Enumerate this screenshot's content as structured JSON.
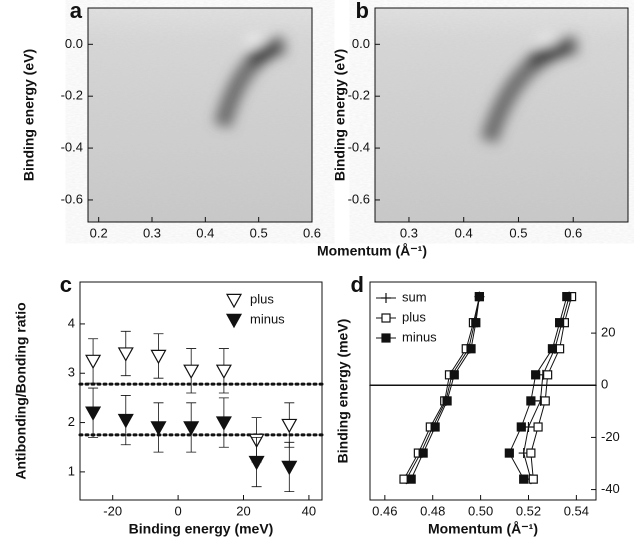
{
  "chart_data": [
    {
      "type": "heatmap",
      "title": "a",
      "xlabel": "Momentum (Å⁻¹)",
      "ylabel": "Binding energy (eV)",
      "xlim": [
        0.18,
        0.6
      ],
      "ylim": [
        -0.685,
        0.14
      ],
      "xticks": [
        0.2,
        0.3,
        0.4,
        0.5,
        0.6
      ],
      "yticks": [
        {
          "value": 0,
          "label": "0.0"
        },
        -0.2,
        -0.4,
        -0.6
      ]
    },
    {
      "type": "heatmap",
      "title": "b",
      "ylabel": "Binding energy (eV)",
      "xlim": [
        0.238,
        0.7
      ],
      "ylim": [
        -0.685,
        0.14
      ],
      "xticks": [
        0.3,
        0.4,
        0.5,
        0.6
      ],
      "yticks": [
        {
          "value": 0,
          "label": "0.0"
        },
        -0.2,
        -0.4,
        -0.6
      ]
    },
    {
      "type": "errorbar",
      "title": "c",
      "xlabel": "Binding energy (meV)",
      "ylabel": "Antibonding/Bonding ratio",
      "xlim": [
        -30,
        44
      ],
      "ylim": [
        0.43,
        4.85
      ],
      "xticks": [
        -20,
        0,
        20,
        40
      ],
      "yticks": [
        1,
        2,
        3,
        4
      ],
      "x": [
        -26,
        -16,
        -6,
        4,
        14,
        24,
        34
      ],
      "series": [
        {
          "name": "plus",
          "marker": "open-triangle",
          "color": "#111",
          "values": [
            3.25,
            3.4,
            3.35,
            3.05,
            3.05,
            1.65,
            1.95
          ],
          "errors": [
            0.45,
            0.45,
            0.45,
            0.45,
            0.45,
            0.45,
            0.45
          ]
        },
        {
          "name": "minus",
          "marker": "filled-triangle",
          "color": "#111",
          "values": [
            2.2,
            2.05,
            1.9,
            1.9,
            2.0,
            1.2,
            1.1
          ],
          "errors": [
            0.5,
            0.5,
            0.5,
            0.5,
            0.5,
            0.5,
            0.5
          ]
        }
      ],
      "hlines": [
        2.78,
        1.75
      ],
      "legend": "upper right"
    },
    {
      "type": "line",
      "title": "d",
      "xlabel": "Momentum (Å⁻¹)",
      "ylabel": "Binding energy (meV)",
      "xlim": [
        0.4538,
        0.5482
      ],
      "ylim": [
        -44,
        39.6
      ],
      "xticks": [
        0.46,
        0.48,
        {
          "value": 0.5,
          "label": "0.50"
        },
        0.52,
        0.54
      ],
      "yticks": [
        -40,
        -20,
        0,
        20
      ],
      "y": [
        34,
        24,
        14,
        4,
        -6,
        -16,
        -26,
        -36
      ],
      "series": [
        {
          "name": "sum",
          "marker": "plus",
          "branches": [
            [
              0.4995,
              0.4975,
              0.495,
              0.488,
              0.4855,
              0.48,
              0.475,
              0.469
            ],
            [
              0.537,
              0.534,
              0.531,
              0.526,
              0.525,
              0.52,
              0.518,
              0.521
            ]
          ]
        },
        {
          "name": "plus",
          "marker": "open-square",
          "branches": [
            [
              0.4995,
              0.497,
              0.494,
              0.487,
              0.485,
              0.479,
              0.474,
              0.468
            ],
            [
              0.538,
              0.535,
              0.533,
              0.528,
              0.527,
              0.524,
              0.521,
              0.522
            ]
          ]
        },
        {
          "name": "minus",
          "marker": "filled-square",
          "branches": [
            [
              0.4995,
              0.498,
              0.496,
              0.489,
              0.486,
              0.481,
              0.476,
              0.471
            ],
            [
              0.536,
              0.533,
              0.53,
              0.523,
              0.521,
              0.517,
              0.512,
              0.518
            ]
          ]
        }
      ],
      "hlines": [
        0
      ],
      "legend": "upper left"
    }
  ]
}
